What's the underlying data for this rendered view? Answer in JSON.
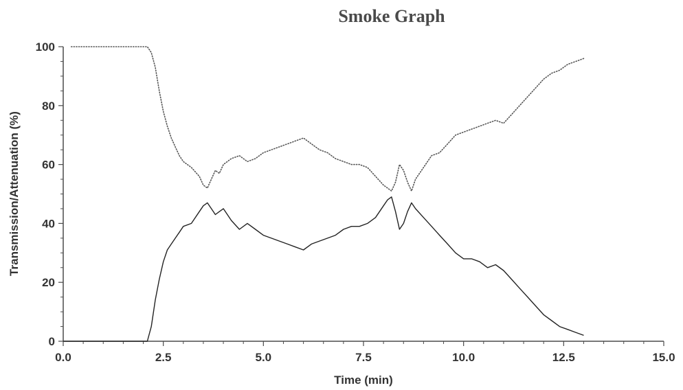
{
  "chart_data": {
    "type": "line",
    "title": "Smoke Graph",
    "xlabel": "Time (min)",
    "ylabel": "Transmission/Attenuation (%)",
    "xlim": [
      0,
      15
    ],
    "ylim": [
      0,
      100
    ],
    "xticks": [
      0,
      2.5,
      5,
      7.5,
      10,
      12.5,
      15
    ],
    "xtick_labels": [
      "0.0",
      "2.5",
      "5.0",
      "7.5",
      "10.0",
      "12.5",
      "15.0"
    ],
    "yticks": [
      0,
      20,
      40,
      60,
      80,
      100
    ],
    "ytick_labels": [
      "0",
      "20",
      "40",
      "60",
      "80",
      "100"
    ],
    "grid": false,
    "series": [
      {
        "style": "dotted",
        "color": "#555555",
        "x": [
          0.2,
          2.1,
          2.2,
          2.3,
          2.4,
          2.5,
          2.6,
          2.7,
          2.8,
          2.9,
          3.0,
          3.2,
          3.4,
          3.5,
          3.6,
          3.7,
          3.8,
          3.9,
          4.0,
          4.2,
          4.4,
          4.6,
          4.8,
          5.0,
          5.2,
          5.4,
          5.6,
          5.8,
          6.0,
          6.2,
          6.4,
          6.6,
          6.8,
          7.0,
          7.2,
          7.4,
          7.6,
          7.8,
          8.0,
          8.1,
          8.2,
          8.3,
          8.4,
          8.5,
          8.6,
          8.7,
          8.8,
          9.0,
          9.2,
          9.4,
          9.6,
          9.8,
          10.0,
          10.2,
          10.4,
          10.6,
          10.8,
          11.0,
          11.2,
          11.4,
          11.6,
          11.8,
          12.0,
          12.2,
          12.4,
          12.6,
          12.8,
          13.0
        ],
        "y": [
          100,
          100,
          98,
          93,
          85,
          78,
          73,
          69,
          66,
          63,
          61,
          59,
          56,
          53,
          52,
          55,
          58,
          57,
          60,
          62,
          63,
          61,
          62,
          64,
          65,
          66,
          67,
          68,
          69,
          67,
          65,
          64,
          62,
          61,
          60,
          60,
          59,
          56,
          53,
          52,
          51,
          54,
          60,
          58,
          54,
          51,
          55,
          59,
          63,
          64,
          67,
          70,
          71,
          72,
          73,
          74,
          75,
          74,
          77,
          80,
          83,
          86,
          89,
          91,
          92,
          94,
          95,
          96
        ]
      },
      {
        "style": "solid",
        "color": "#222222",
        "x": [
          0.0,
          2.1,
          2.2,
          2.3,
          2.4,
          2.5,
          2.6,
          2.7,
          2.8,
          2.9,
          3.0,
          3.2,
          3.4,
          3.5,
          3.6,
          3.7,
          3.8,
          3.9,
          4.0,
          4.2,
          4.4,
          4.6,
          4.8,
          5.0,
          5.2,
          5.4,
          5.6,
          5.8,
          6.0,
          6.2,
          6.4,
          6.6,
          6.8,
          7.0,
          7.2,
          7.4,
          7.6,
          7.8,
          8.0,
          8.1,
          8.2,
          8.3,
          8.4,
          8.5,
          8.6,
          8.7,
          8.8,
          9.0,
          9.2,
          9.4,
          9.6,
          9.8,
          10.0,
          10.2,
          10.4,
          10.6,
          10.8,
          11.0,
          11.2,
          11.4,
          11.6,
          11.8,
          12.0,
          12.2,
          12.4,
          12.6,
          12.8,
          13.0
        ],
        "y": [
          0,
          0,
          5,
          14,
          21,
          27,
          31,
          33,
          35,
          37,
          39,
          40,
          44,
          46,
          47,
          45,
          43,
          44,
          45,
          41,
          38,
          40,
          38,
          36,
          35,
          34,
          33,
          32,
          31,
          33,
          34,
          35,
          36,
          38,
          39,
          39,
          40,
          42,
          46,
          48,
          49,
          44,
          38,
          40,
          44,
          47,
          45,
          42,
          39,
          36,
          33,
          30,
          28,
          28,
          27,
          25,
          26,
          24,
          21,
          18,
          15,
          12,
          9,
          7,
          5,
          4,
          3,
          2
        ]
      }
    ]
  }
}
